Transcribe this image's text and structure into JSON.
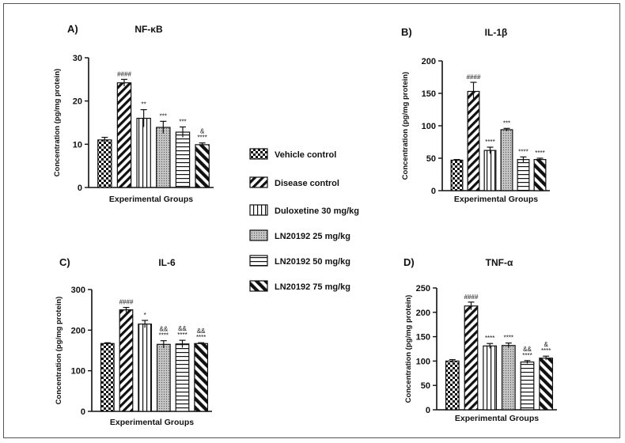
{
  "legend": [
    {
      "label": "Vehicle control",
      "pattern": "check"
    },
    {
      "label": "Disease control",
      "pattern": "diag"
    },
    {
      "label": "Duloxetine 30 mg/kg",
      "pattern": "vert"
    },
    {
      "label": "LN20192 25 mg/kg",
      "pattern": "dots"
    },
    {
      "label": "LN20192 50 mg/kg",
      "pattern": "horiz"
    },
    {
      "label": "LN20192 75 mg/kg",
      "pattern": "thick"
    }
  ],
  "chart_data": [
    {
      "type": "bar",
      "panel": "A)",
      "title": "NF-κB",
      "categories": [
        "Vehicle control",
        "Disease control",
        "Duloxetine 30 mg/kg",
        "LN20192 25 mg/kg",
        "LN20192 50 mg/kg",
        "LN20192 75 mg/kg"
      ],
      "values": [
        11,
        24.2,
        16,
        13.9,
        12.8,
        9.9
      ],
      "errors": [
        0.6,
        0.8,
        2,
        1.4,
        1.2,
        0.4
      ],
      "annotations": [
        "",
        "####",
        "**",
        "***",
        "***",
        "&\n****"
      ],
      "xlabel": "Experimental Groups",
      "ylabel": "Concentration (pg/mg protein)",
      "ylim": [
        0,
        30
      ],
      "yticks": [
        0,
        10,
        20,
        30
      ]
    },
    {
      "type": "bar",
      "panel": "B)",
      "title": "IL-1β",
      "categories": [
        "Vehicle control",
        "Disease control",
        "Duloxetine 30 mg/kg",
        "LN20192 25 mg/kg",
        "LN20192 50 mg/kg",
        "LN20192 75 mg/kg"
      ],
      "values": [
        47,
        153,
        62,
        94,
        48,
        48
      ],
      "errors": [
        1,
        14,
        5,
        2,
        4,
        2
      ],
      "annotations": [
        "",
        "####",
        "****",
        "***",
        "****",
        "****"
      ],
      "xlabel": "Experimental Groups",
      "ylabel": "Concentration (pg/mg protein)",
      "ylim": [
        0,
        200
      ],
      "yticks": [
        0,
        50,
        100,
        150,
        200
      ]
    },
    {
      "type": "bar",
      "panel": "C)",
      "title": "IL-6",
      "categories": [
        "Vehicle control",
        "Disease control",
        "Duloxetine 30 mg/kg",
        "LN20192 25 mg/kg",
        "LN20192 50 mg/kg",
        "LN20192 75 mg/kg"
      ],
      "values": [
        167,
        250,
        215,
        165,
        166,
        167
      ],
      "errors": [
        2,
        6,
        9,
        9,
        9,
        2
      ],
      "annotations": [
        "",
        "####",
        "*",
        "&&\n****",
        "&&\n****",
        "&&\n****"
      ],
      "xlabel": "Experimental Groups",
      "ylabel": "Concentration (pg/mg protein)",
      "ylim": [
        0,
        300
      ],
      "yticks": [
        0,
        100,
        200,
        300
      ]
    },
    {
      "type": "bar",
      "panel": "D)",
      "title": "TNF-α",
      "categories": [
        "Vehicle control",
        "Disease control",
        "Duloxetine 30 mg/kg",
        "LN20192 25 mg/kg",
        "LN20192 50 mg/kg",
        "LN20192 75 mg/kg"
      ],
      "values": [
        100,
        213,
        131,
        132,
        98,
        106
      ],
      "errors": [
        3,
        8,
        5,
        5,
        3,
        4
      ],
      "annotations": [
        "",
        "####",
        "****",
        "****",
        "&&\n****",
        "&\n****"
      ],
      "xlabel": "Experimental Groups",
      "ylabel": "Concentration (pg/mg protein)",
      "ylim": [
        0,
        250
      ],
      "yticks": [
        0,
        50,
        100,
        150,
        200,
        250
      ]
    }
  ]
}
